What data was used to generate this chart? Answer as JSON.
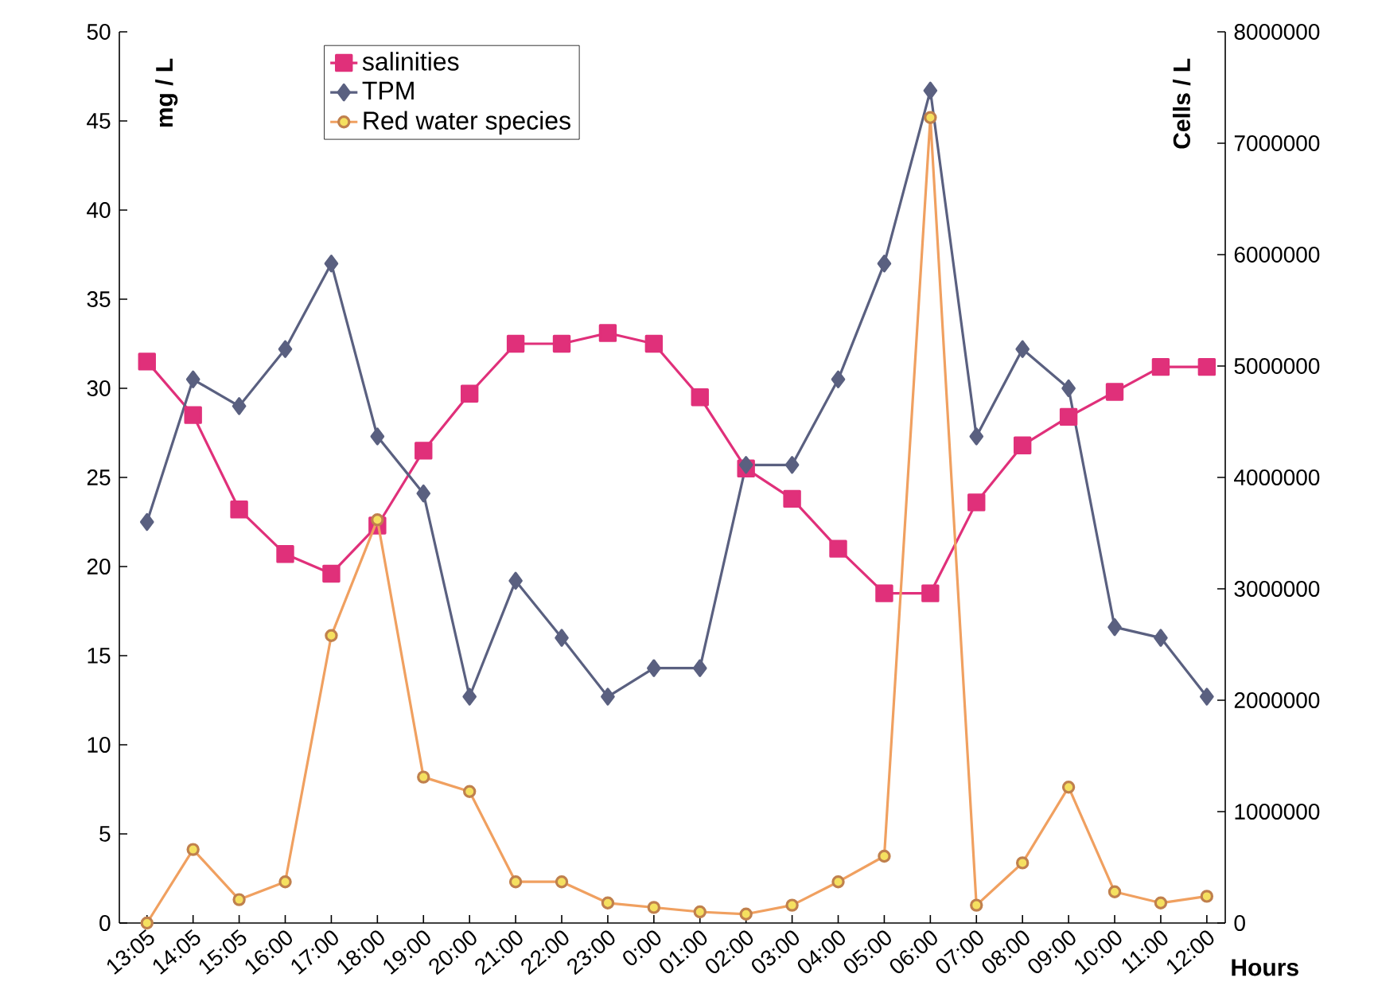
{
  "chart_data": {
    "type": "line",
    "xlabel": "Hours",
    "ylabel": "mg / L",
    "y2label": "Cells / L",
    "categories": [
      "13:05",
      "14:05",
      "15:05",
      "16:00",
      "17:00",
      "18:00",
      "19:00",
      "20:00",
      "21:00",
      "22:00",
      "23:00",
      "0:00",
      "01:00",
      "02:00",
      "03:00",
      "04:00",
      "05:00",
      "06:00",
      "07:00",
      "08:00",
      "09:00",
      "10:00",
      "11:00",
      "12:00"
    ],
    "series": [
      {
        "name": "salinities",
        "color": "#e0307a",
        "marker": "square",
        "values": [
          31.5,
          28.5,
          23.2,
          20.7,
          19.6,
          22.3,
          26.5,
          29.7,
          32.5,
          32.5,
          33.1,
          32.5,
          29.5,
          25.5,
          23.8,
          21,
          18.5,
          18.5,
          23.6,
          26.8,
          28.4,
          29.8,
          31.2,
          31.2
        ]
      },
      {
        "name": "TPM",
        "color": "#5a6080",
        "marker": "diamond",
        "values": [
          22.5,
          30.5,
          29,
          32.2,
          37,
          27.3,
          24.1,
          12.7,
          19.2,
          16,
          12.7,
          14.3,
          14.3,
          25.7,
          25.7,
          30.5,
          37,
          46.7,
          27.3,
          32.2,
          30,
          16.6,
          16,
          12.7
        ]
      },
      {
        "name": "Red water species",
        "color": "#f0a060",
        "marker": "circle",
        "axis": "y2",
        "values": [
          0,
          660000,
          210000,
          370000,
          2580000,
          3620000,
          1310000,
          1180000,
          370000,
          370000,
          180000,
          140000,
          100000,
          80000,
          160000,
          370000,
          600000,
          7230000,
          160000,
          540000,
          1220000,
          280000,
          180000,
          240000
        ]
      }
    ],
    "ylim": [
      0,
      50
    ],
    "yticks": [
      0,
      5,
      10,
      15,
      20,
      25,
      30,
      35,
      40,
      45,
      50
    ],
    "y2lim": [
      0,
      8000000
    ],
    "y2ticks": [
      0,
      1000000,
      2000000,
      3000000,
      4000000,
      5000000,
      6000000,
      7000000,
      8000000
    ],
    "grid": false,
    "legend": "top"
  }
}
